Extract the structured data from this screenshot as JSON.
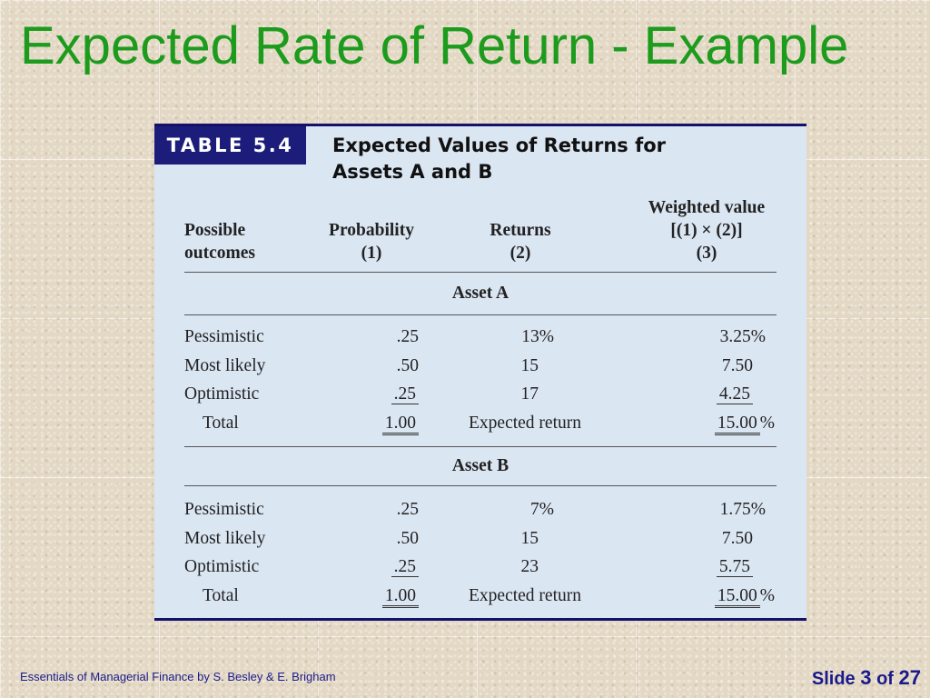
{
  "slide": {
    "title": "Expected Rate of Return - Example",
    "footer_text": "Essentials of Managerial Finance by S. Besley & E. Brigham",
    "slide_label": "Slide",
    "slide_number": "3",
    "of_label": "of",
    "total_slides": "27"
  },
  "table": {
    "tag": "TABLE 5.4",
    "heading_line1": "Expected Values of Returns for",
    "heading_line2": "Assets A and B",
    "headers": {
      "outcomes_line1": "Possible",
      "outcomes_line2": "outcomes",
      "probability_line1": "Probability",
      "probability_line2": "(1)",
      "returns_line1": "Returns",
      "returns_line2": "(2)",
      "weighted_line1": "Weighted value",
      "weighted_line2": "[(1) × (2)]",
      "weighted_line3": "(3)"
    },
    "sections": [
      {
        "name": "Asset A",
        "rows": [
          {
            "outcome": "Pessimistic",
            "probability": ".25",
            "returns": "13%",
            "weighted": "3.25%"
          },
          {
            "outcome": "Most likely",
            "probability": ".50",
            "returns": "15",
            "weighted": "7.50"
          },
          {
            "outcome": "Optimistic",
            "probability": ".25",
            "returns": "17",
            "weighted": "4.25"
          }
        ],
        "total": {
          "label": "Total",
          "probability": "1.00",
          "returns_label": "Expected return",
          "weighted": "15.00",
          "weighted_suffix": "%"
        }
      },
      {
        "name": "Asset B",
        "rows": [
          {
            "outcome": "Pessimistic",
            "probability": ".25",
            "returns": "7%",
            "weighted": "1.75%"
          },
          {
            "outcome": "Most likely",
            "probability": ".50",
            "returns": "15",
            "weighted": "7.50"
          },
          {
            "outcome": "Optimistic",
            "probability": ".25",
            "returns": "23",
            "weighted": "5.75"
          }
        ],
        "total": {
          "label": "Total",
          "probability": "1.00",
          "returns_label": "Expected return",
          "weighted": "15.00",
          "weighted_suffix": "%"
        }
      }
    ]
  },
  "colors": {
    "title_green": "#1c9b1c",
    "tag_navy": "#1c1c7a",
    "table_bg": "#dbe6f3",
    "footer_blue": "#1a1a8c"
  }
}
